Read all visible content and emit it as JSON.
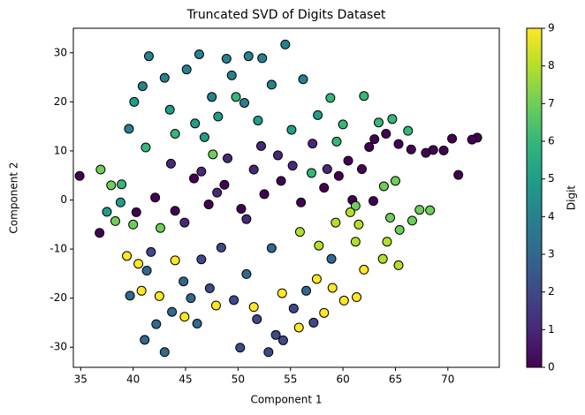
{
  "chart_data": {
    "type": "scatter",
    "title": "Truncated SVD of Digits Dataset",
    "x_label": "Component 1",
    "y_label": "Component 2",
    "colorbar_label": "Digit",
    "x": [
      72.8,
      72.3,
      70.4,
      69.6,
      68.6,
      67.9,
      66.5,
      65.3,
      64.1,
      63.0,
      62.5,
      61.8,
      60.5,
      59.6,
      58.2,
      56.0,
      54.1,
      52.5,
      50.3,
      48.7,
      47.2,
      45.8,
      44.0,
      42.1,
      40.3,
      36.8,
      34.9,
      71.0,
      60.9,
      62.9,
      51.5,
      49.0,
      53.8,
      55.2,
      46.5,
      43.6,
      57.1,
      52.2,
      48.0,
      50.8,
      44.9,
      58.5,
      49.6,
      51.8,
      53.6,
      47.3,
      55.3,
      50.2,
      52.9,
      54.3,
      46.5,
      48.4,
      41.7,
      57.2,
      44.8,
      46.1,
      43.7,
      42.2,
      41.1,
      43.0,
      45.5,
      56.5,
      58.9,
      50.8,
      53.2,
      41.3,
      39.7,
      46.3,
      48.9,
      51.0,
      52.3,
      54.5,
      49.4,
      45.1,
      43.0,
      41.5,
      47.5,
      53.2,
      56.2,
      40.9,
      39.6,
      50.6,
      43.5,
      45.9,
      48.1,
      51.9,
      55.1,
      57.6,
      40.1,
      46.8,
      38.8,
      37.5,
      58.8,
      62.0,
      60.0,
      63.4,
      64.7,
      66.2,
      49.8,
      44.0,
      41.2,
      57.0,
      59.4,
      38.9,
      36.9,
      37.9,
      40.0,
      42.6,
      38.3,
      65.4,
      66.6,
      67.3,
      68.3,
      65.0,
      64.5,
      63.9,
      61.2,
      47.6,
      59.3,
      61.2,
      63.8,
      65.3,
      57.7,
      55.9,
      61.5,
      64.2,
      60.7,
      40.8,
      42.5,
      44.9,
      47.9,
      51.5,
      54.2,
      57.5,
      59.0,
      60.1,
      61.3,
      58.2,
      62.0,
      40.5,
      44.0,
      39.4,
      55.8
    ],
    "values": [
      12.7,
      12.3,
      12.5,
      10.1,
      10.2,
      9.6,
      10.3,
      11.4,
      13.5,
      12.4,
      10.8,
      6.3,
      8.0,
      4.9,
      2.5,
      -0.5,
      3.9,
      1.2,
      -1.8,
      3.1,
      -0.9,
      4.4,
      -2.2,
      0.5,
      -2.5,
      -6.7,
      4.9,
      5.1,
      0.0,
      -0.2,
      6.2,
      8.5,
      9.1,
      7.0,
      5.8,
      7.4,
      11.5,
      11.0,
      1.5,
      -3.9,
      -4.6,
      6.3,
      -20.4,
      -24.3,
      -27.5,
      -18.0,
      -22.1,
      -30.1,
      -31.0,
      -28.6,
      -12.1,
      -9.7,
      -10.6,
      -25.0,
      -16.6,
      -25.2,
      -22.8,
      -25.3,
      -28.5,
      -31.0,
      -20.0,
      -18.5,
      -12.0,
      -15.1,
      -9.8,
      -14.4,
      -19.5,
      29.7,
      28.8,
      29.3,
      28.9,
      31.7,
      25.4,
      26.6,
      24.9,
      29.3,
      21.0,
      23.5,
      24.6,
      23.2,
      14.5,
      19.8,
      18.4,
      15.6,
      17.0,
      16.2,
      14.3,
      17.3,
      20.0,
      12.8,
      -0.5,
      -2.4,
      20.8,
      21.2,
      15.4,
      15.8,
      16.5,
      14.1,
      21.0,
      13.5,
      10.7,
      5.5,
      11.9,
      3.2,
      6.2,
      3.0,
      -5.0,
      -5.7,
      -4.3,
      -6.1,
      -4.2,
      -2.0,
      -2.1,
      3.9,
      -3.6,
      2.8,
      -1.2,
      9.3,
      -4.6,
      -8.5,
      -12.0,
      -13.3,
      -9.3,
      -6.5,
      -5.0,
      -8.5,
      -2.5,
      -18.5,
      -19.6,
      -23.8,
      -21.5,
      -21.8,
      -19.0,
      -16.1,
      -17.9,
      -20.5,
      -19.8,
      -23.0,
      -14.2,
      -13.0,
      -12.3,
      -11.4,
      -26.0
    ],
    "color_values": [
      0,
      0,
      0,
      0,
      0,
      0,
      0,
      0,
      0,
      0,
      0,
      0,
      0,
      0,
      0,
      0,
      0,
      0,
      0,
      0,
      0,
      0,
      0,
      0,
      0,
      0,
      0,
      0,
      0,
      0,
      1,
      1,
      1,
      1,
      1,
      1,
      1,
      1,
      1,
      1,
      1,
      1,
      2,
      2,
      2,
      2,
      2,
      2,
      2,
      2,
      2,
      2,
      2,
      2,
      3,
      3,
      3,
      3,
      3,
      3,
      3,
      3,
      3,
      3,
      3,
      3,
      3,
      4,
      4,
      4,
      4,
      4,
      4,
      4,
      4,
      4,
      4,
      4,
      4,
      4,
      4,
      4,
      5,
      5,
      5,
      5,
      5,
      5,
      5,
      5,
      5,
      5,
      6,
      6,
      6,
      6,
      6,
      6,
      6,
      6,
      6,
      6,
      6,
      6,
      7,
      7,
      7,
      7,
      7,
      7,
      7,
      7,
      7,
      7,
      7,
      7,
      7,
      7,
      8,
      8,
      8,
      8,
      8,
      8,
      8,
      8,
      8,
      9,
      9,
      9,
      9,
      9,
      9,
      9,
      9,
      9,
      9,
      9,
      9,
      9,
      9,
      9,
      9
    ],
    "colormap": [
      "#440154",
      "#482878",
      "#3e4989",
      "#31688e",
      "#26828e",
      "#1f9e89",
      "#35b779",
      "#6ece58",
      "#b5de2b",
      "#fde725"
    ],
    "edge_color": "#000000",
    "clim": [
      0,
      9
    ],
    "cticks": [
      0,
      1,
      2,
      3,
      4,
      5,
      6,
      7,
      8,
      9
    ],
    "xlim": [
      34.3,
      74.9
    ],
    "xticks": [
      35,
      40,
      45,
      50,
      55,
      60,
      65,
      70
    ],
    "ylim": [
      -34.1,
      35.0
    ],
    "yticks": [
      -30,
      -20,
      -10,
      0,
      10,
      20,
      30
    ],
    "grid": false
  }
}
